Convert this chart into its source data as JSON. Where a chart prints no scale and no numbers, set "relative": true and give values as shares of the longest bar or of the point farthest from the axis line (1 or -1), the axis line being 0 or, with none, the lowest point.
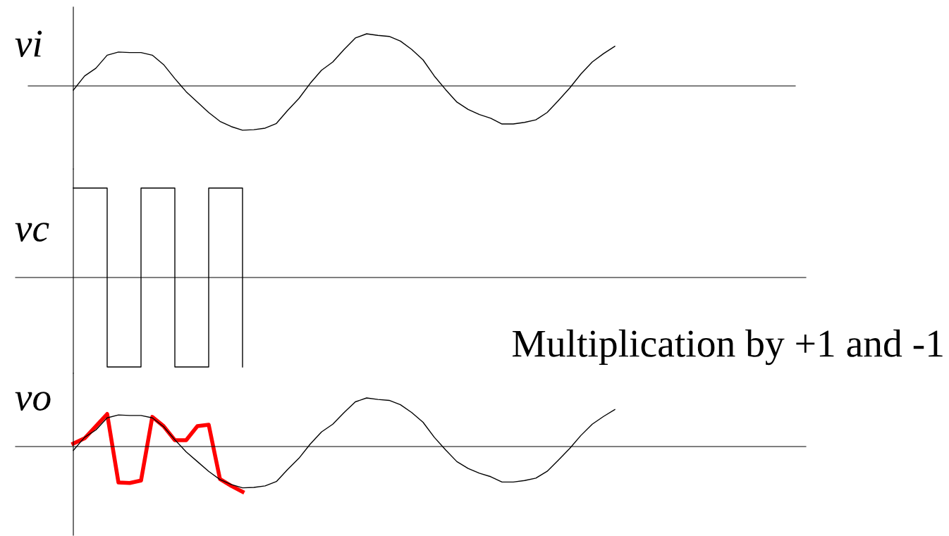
{
  "chart_data": [
    {
      "type": "line",
      "ylabel": "vi",
      "relative": true,
      "legend": false,
      "marker": "none",
      "line_style": "solid",
      "categories": [
        null,
        null,
        null,
        null,
        null,
        null,
        null,
        null,
        null,
        null,
        null,
        null,
        null,
        null,
        null,
        null,
        null,
        null,
        null,
        null,
        null,
        null,
        null,
        null,
        null,
        null,
        null,
        null,
        null,
        null,
        null,
        null,
        null,
        null,
        null,
        null,
        null,
        null,
        null,
        null,
        null,
        null,
        null,
        null,
        null,
        null,
        null,
        null,
        null
      ],
      "series": [
        {
          "color": "#000000",
          "values": [
            -0.08,
            0.19,
            0.34,
            0.59,
            0.65,
            0.64,
            0.64,
            0.59,
            0.41,
            0.14,
            -0.11,
            -0.31,
            -0.51,
            -0.68,
            -0.78,
            -0.85,
            -0.84,
            -0.81,
            -0.72,
            -0.47,
            -0.24,
            0.05,
            0.3,
            0.46,
            0.7,
            0.92,
            1.0,
            0.97,
            0.95,
            0.86,
            0.7,
            0.5,
            0.19,
            -0.07,
            -0.31,
            -0.45,
            -0.55,
            -0.62,
            -0.73,
            -0.73,
            -0.7,
            -0.65,
            -0.51,
            -0.28,
            -0.04,
            0.23,
            0.46,
            0.62,
            0.76
          ]
        }
      ]
    },
    {
      "type": "step",
      "ylabel": "vc",
      "relative": true,
      "legend": false,
      "marker": "none",
      "line_style": "solid",
      "categories": [
        null,
        null,
        null,
        null,
        null,
        null,
        null,
        null,
        null,
        null,
        null,
        null,
        null,
        null,
        null,
        null,
        null,
        null,
        null,
        null,
        null,
        null,
        null,
        null,
        null,
        null,
        null,
        null,
        null,
        null,
        null,
        null,
        null,
        null,
        null,
        null,
        null,
        null,
        null,
        null,
        null,
        null,
        null,
        null,
        null,
        null,
        null,
        null,
        null
      ],
      "series": [
        {
          "color": "#000000",
          "values": [
            1,
            1,
            1,
            -1,
            -1,
            -1,
            1,
            1,
            1,
            -1,
            -1,
            -1,
            1,
            1,
            1,
            -1,
            null,
            null,
            null,
            null,
            null,
            null,
            null,
            null,
            null,
            null,
            null,
            null,
            null,
            null,
            null,
            null,
            null,
            null,
            null,
            null,
            null,
            null,
            null,
            null,
            null,
            null,
            null,
            null,
            null,
            null,
            null,
            null,
            null
          ]
        }
      ]
    },
    {
      "type": "line",
      "ylabel": "vo",
      "relative": true,
      "legend": false,
      "marker": "none",
      "line_style": "solid",
      "annotations": [
        "Multiplication by +1 and -1"
      ],
      "categories": [
        null,
        null,
        null,
        null,
        null,
        null,
        null,
        null,
        null,
        null,
        null,
        null,
        null,
        null,
        null,
        null,
        null,
        null,
        null,
        null,
        null,
        null,
        null,
        null,
        null,
        null,
        null,
        null,
        null,
        null,
        null,
        null,
        null,
        null,
        null,
        null,
        null,
        null,
        null,
        null,
        null,
        null,
        null,
        null,
        null,
        null,
        null,
        null,
        null
      ],
      "series": [
        {
          "color": "#000000",
          "values": [
            -0.08,
            0.19,
            0.34,
            0.59,
            0.65,
            0.64,
            0.64,
            0.59,
            0.41,
            0.14,
            -0.11,
            -0.31,
            -0.51,
            -0.68,
            -0.78,
            -0.85,
            -0.84,
            -0.81,
            -0.72,
            -0.47,
            -0.24,
            0.05,
            0.3,
            0.46,
            0.7,
            0.92,
            1.0,
            0.97,
            0.95,
            0.86,
            0.7,
            0.5,
            0.19,
            -0.07,
            -0.31,
            -0.45,
            -0.55,
            -0.62,
            -0.73,
            -0.73,
            -0.7,
            -0.65,
            -0.51,
            -0.28,
            -0.04,
            0.23,
            0.46,
            0.62,
            0.76
          ]
        },
        {
          "color": "#ff0000",
          "values": [
            0.06,
            0.17,
            0.42,
            0.67,
            -0.74,
            -0.75,
            -0.7,
            0.61,
            0.42,
            0.13,
            0.13,
            0.42,
            0.45,
            -0.67,
            -0.81,
            -0.93,
            null,
            null,
            null,
            null,
            null,
            null,
            null,
            null,
            null,
            null,
            null,
            null,
            null,
            null,
            null,
            null,
            null,
            null,
            null,
            null,
            null,
            null,
            null,
            null,
            null,
            null,
            null,
            null,
            null,
            null,
            null,
            null,
            null
          ]
        }
      ]
    }
  ]
}
